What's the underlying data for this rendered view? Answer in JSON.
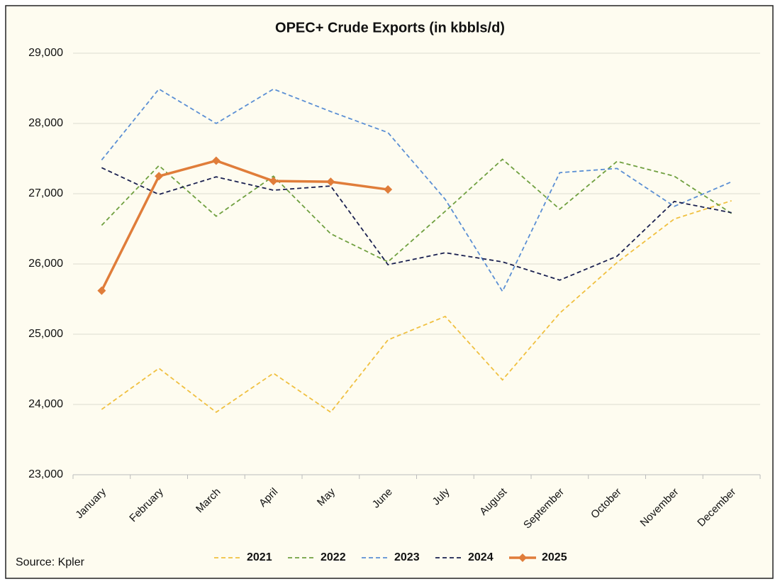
{
  "chart_data": {
    "type": "line",
    "title": "OPEC+ Crude Exports (in kbbls/d)",
    "source": "Source: Kpler",
    "categories": [
      "January",
      "February",
      "March",
      "April",
      "May",
      "June",
      "July",
      "August",
      "September",
      "October",
      "November",
      "December"
    ],
    "ylim": [
      23000,
      29000
    ],
    "yticks": [
      {
        "value": 23000,
        "label": "23,000"
      },
      {
        "value": 24000,
        "label": "24,000"
      },
      {
        "value": 25000,
        "label": "25,000"
      },
      {
        "value": 26000,
        "label": "26,000"
      },
      {
        "value": 27000,
        "label": "27,000"
      },
      {
        "value": 28000,
        "label": "28,000"
      },
      {
        "value": 29000,
        "label": "29,000"
      }
    ],
    "grid": true,
    "legend": "bottom",
    "series": [
      {
        "name": "2021",
        "color": "#f0c040",
        "dashed": true,
        "values": [
          23930,
          24515,
          23890,
          24444,
          23890,
          24919,
          25253,
          24350,
          25300,
          26020,
          26640,
          26900
        ]
      },
      {
        "name": "2022",
        "color": "#70a040",
        "dashed": true,
        "values": [
          26550,
          27400,
          26680,
          27250,
          26430,
          26030,
          26750,
          27490,
          26780,
          27460,
          27250,
          26720
        ]
      },
      {
        "name": "2023",
        "color": "#5b8fd4",
        "dashed": true,
        "values": [
          27480,
          28490,
          28000,
          28490,
          28170,
          27870,
          26920,
          25610,
          27300,
          27360,
          26820,
          27170
        ]
      },
      {
        "name": "2024",
        "color": "#1a2050",
        "dashed": true,
        "values": [
          27370,
          26990,
          27240,
          27050,
          27110,
          25990,
          26160,
          26030,
          25770,
          26110,
          26890,
          26730
        ]
      },
      {
        "name": "2025",
        "color": "#e07d3a",
        "dashed": false,
        "markers": "diamond",
        "values": [
          25620,
          27250,
          27470,
          27180,
          27170,
          27060,
          null,
          null,
          null,
          null,
          null,
          null
        ]
      }
    ]
  }
}
